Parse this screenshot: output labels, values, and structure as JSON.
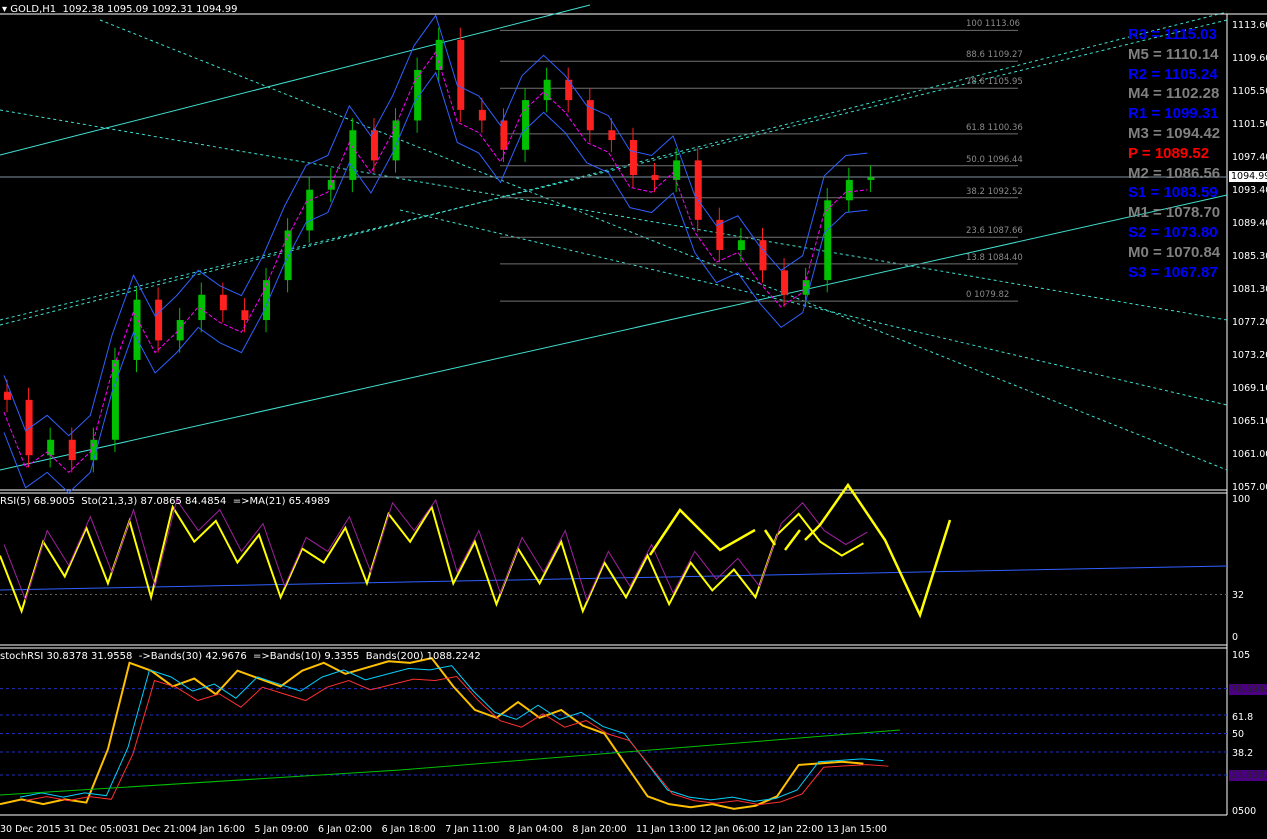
{
  "header": {
    "symbol": "GOLD,H1",
    "ohlc": "1092.38 1095.09 1092.31 1094.99"
  },
  "current_price": "1094.99",
  "colors": {
    "bull": "#00c000",
    "bear": "#ff2020",
    "rsi": "#ffff00",
    "trend": "#40e0d0",
    "pivot_r": "#0000ff",
    "pivot_m": "#808080",
    "pivot_p": "#ff0000",
    "pivot_s": "#0000ff"
  },
  "pivots": [
    {
      "label": "R3 = 1115.03",
      "type": "r"
    },
    {
      "label": "M5 = 1110.14",
      "type": "m"
    },
    {
      "label": "R2 = 1105.24",
      "type": "r"
    },
    {
      "label": "M4 = 1102.28",
      "type": "m"
    },
    {
      "label": "R1 = 1099.31",
      "type": "r"
    },
    {
      "label": "M3 = 1094.42",
      "type": "m"
    },
    {
      "label": "P  = 1089.52",
      "type": "p"
    },
    {
      "label": "M2 = 1086.56",
      "type": "m"
    },
    {
      "label": "S1 = 1083.59",
      "type": "s"
    },
    {
      "label": "M1 = 1078.70",
      "type": "m"
    },
    {
      "label": "S2 = 1073.80",
      "type": "s"
    },
    {
      "label": "M0 = 1070.84",
      "type": "m"
    },
    {
      "label": "S3 = 1067.87",
      "type": "s"
    }
  ],
  "fib_levels": [
    {
      "label": "100 1113.06",
      "price": 1113.06
    },
    {
      "label": "88.6 1109.27",
      "price": 1109.27
    },
    {
      "label": "78.6 1105.95",
      "price": 1105.95
    },
    {
      "label": "61.8 1100.36",
      "price": 1100.36
    },
    {
      "label": "50.0 1096.44",
      "price": 1096.44
    },
    {
      "label": "38.2 1092.52",
      "price": 1092.52
    },
    {
      "label": "23.6 1087.66",
      "price": 1087.66
    },
    {
      "label": "13.8 1084.40",
      "price": 1084.4
    },
    {
      "label": "0 1079.82",
      "price": 1079.82
    }
  ],
  "chart_data": [
    {
      "type": "candlestick",
      "title": "GOLD,H1",
      "ylim": [
        1057.0,
        1113.6
      ],
      "yticks": [
        "1113.60",
        "1109.60",
        "1105.50",
        "1101.50",
        "1097.40",
        "1093.40",
        "1089.40",
        "1085.30",
        "1081.30",
        "1077.20",
        "1073.20",
        "1069.10",
        "1065.10",
        "1061.00",
        "1057.00"
      ],
      "xticks": [
        "30 Dec 2015",
        "31 Dec 05:00",
        "31 Dec 21:00",
        "4 Jan 16:00",
        "5 Jan 09:00",
        "6 Jan 02:00",
        "6 Jan 18:00",
        "7 Jan 11:00",
        "8 Jan 04:00",
        "8 Jan 20:00",
        "11 Jan 13:00",
        "12 Jan 06:00",
        "12 Jan 22:00",
        "13 Jan 15:00"
      ],
      "closes": [
        1067.7,
        1060.9,
        1062.8,
        1060.3,
        1062.8,
        1072.6,
        1080.0,
        1075.0,
        1077.5,
        1080.6,
        1078.7,
        1077.5,
        1082.4,
        1088.5,
        1093.5,
        1094.7,
        1100.8,
        1097.1,
        1102.0,
        1108.2,
        1111.9,
        1103.3,
        1102.0,
        1098.4,
        1104.5,
        1107.0,
        1104.5,
        1100.8,
        1099.6,
        1095.3,
        1094.7,
        1097.1,
        1089.8,
        1086.1,
        1087.3,
        1083.6,
        1080.6,
        1082.4,
        1092.2,
        1094.7,
        1094.99
      ]
    },
    {
      "type": "line",
      "title": "RSI(5) 68.9005  Sto(21,3,3) 87.0865 84.4854  =>MA(21) 65.4989",
      "ylim": [
        0,
        100
      ],
      "yticks": [
        "100",
        "32",
        "0"
      ],
      "rsi": [
        60,
        20,
        70,
        45,
        80,
        40,
        85,
        30,
        95,
        70,
        85,
        55,
        75,
        30,
        65,
        55,
        80,
        40,
        90,
        70,
        95,
        40,
        70,
        25,
        65,
        40,
        70,
        20,
        55,
        30,
        60,
        25,
        55,
        35,
        50,
        30,
        75,
        90,
        70,
        60,
        68.9
      ]
    },
    {
      "type": "line",
      "title": "stochRSI 30.8378 31.9558  ->Bands(30) 42.9676  =>Bands(10) 9.3355  Bands(200) 1088.2242",
      "ylim": [
        0,
        100
      ],
      "yticks": [
        "105",
        "78.5942",
        "61.8",
        "50",
        "38.2",
        "23.6092",
        "0500"
      ],
      "stoch": [
        5,
        8,
        5,
        8,
        6,
        40,
        95,
        90,
        80,
        85,
        75,
        90,
        85,
        80,
        90,
        95,
        88,
        92,
        96,
        95,
        98,
        80,
        65,
        60,
        70,
        60,
        65,
        55,
        50,
        30,
        10,
        5,
        3,
        5,
        2,
        4,
        10,
        30,
        31,
        32,
        30.8
      ]
    }
  ]
}
